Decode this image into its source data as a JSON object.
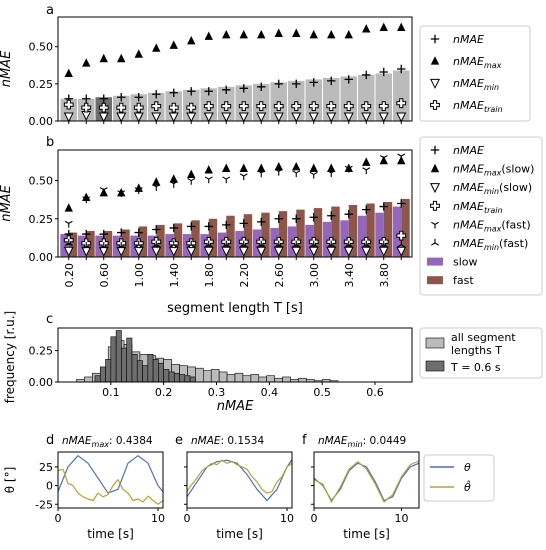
{
  "chart_data": [
    {
      "type": "bar",
      "panel_label": "a",
      "ylabel": "nMAE",
      "ylim": [
        0,
        0.7
      ],
      "yticks": [
        "0.00",
        "0.25",
        "0.50"
      ],
      "x_count": 20,
      "x_highlight_index": 2,
      "bar_values": [
        0.15,
        0.15,
        0.16,
        0.17,
        0.18,
        0.19,
        0.2,
        0.21,
        0.22,
        0.23,
        0.24,
        0.25,
        0.26,
        0.27,
        0.28,
        0.29,
        0.3,
        0.31,
        0.32,
        0.34
      ],
      "series": [
        {
          "name": "nMAE",
          "marker": "plus",
          "values": [
            0.15,
            0.15,
            0.15,
            0.16,
            0.16,
            0.18,
            0.19,
            0.2,
            0.2,
            0.21,
            0.22,
            0.23,
            0.25,
            0.25,
            0.26,
            0.27,
            0.28,
            0.31,
            0.33,
            0.35
          ]
        },
        {
          "name": "nMAE_max",
          "marker": "triangle-up",
          "values": [
            0.32,
            0.39,
            0.42,
            0.42,
            0.45,
            0.49,
            0.51,
            0.54,
            0.57,
            0.58,
            0.58,
            0.58,
            0.59,
            0.59,
            0.58,
            0.58,
            0.58,
            0.62,
            0.63,
            0.63
          ]
        },
        {
          "name": "nMAE_min",
          "marker": "triangle-down",
          "values": [
            0.03,
            0.04,
            0.03,
            0.03,
            0.03,
            0.03,
            0.03,
            0.03,
            0.03,
            0.03,
            0.03,
            0.03,
            0.03,
            0.03,
            0.03,
            0.03,
            0.03,
            0.03,
            0.03,
            0.03
          ]
        },
        {
          "name": "nMAE_train",
          "marker": "plus-outline",
          "values": [
            0.11,
            0.09,
            0.09,
            0.09,
            0.09,
            0.1,
            0.09,
            0.09,
            0.1,
            0.1,
            0.1,
            0.1,
            0.1,
            0.1,
            0.1,
            0.1,
            0.1,
            0.1,
            0.1,
            0.12
          ]
        }
      ],
      "legend": {
        "position": "right",
        "items": [
          {
            "base": "nMAE",
            "sub": "",
            "suffix": "",
            "marker": "plus"
          },
          {
            "base": "nMAE",
            "sub": "max",
            "suffix": "",
            "marker": "triangle-up"
          },
          {
            "base": "nMAE",
            "sub": "min",
            "suffix": "",
            "marker": "triangle-down"
          },
          {
            "base": "nMAE",
            "sub": "train",
            "suffix": "",
            "marker": "plus-outline"
          }
        ]
      }
    },
    {
      "type": "bar",
      "panel_label": "b",
      "ylabel": "nMAE",
      "xlabel": "segment length T [s]",
      "ylim": [
        0,
        0.7
      ],
      "yticks": [
        "0.00",
        "0.25",
        "0.50"
      ],
      "xtick_labels": [
        "0.20",
        "0.60",
        "1.00",
        "1.40",
        "1.80",
        "2.20",
        "2.60",
        "3.00",
        "3.40",
        "3.80"
      ],
      "x_count": 20,
      "series": [
        {
          "name": "slow",
          "kind": "bar",
          "color": "#9467bd",
          "values": [
            0.15,
            0.14,
            0.14,
            0.14,
            0.14,
            0.14,
            0.15,
            0.15,
            0.15,
            0.16,
            0.17,
            0.18,
            0.19,
            0.2,
            0.21,
            0.23,
            0.24,
            0.27,
            0.29,
            0.33
          ]
        },
        {
          "name": "fast",
          "kind": "bar",
          "color": "#8c564b",
          "values": [
            0.16,
            0.17,
            0.17,
            0.18,
            0.2,
            0.21,
            0.22,
            0.24,
            0.25,
            0.27,
            0.28,
            0.29,
            0.3,
            0.31,
            0.32,
            0.33,
            0.34,
            0.35,
            0.36,
            0.38
          ]
        },
        {
          "name": "nMAE",
          "marker": "plus",
          "values": [
            0.15,
            0.15,
            0.15,
            0.16,
            0.16,
            0.18,
            0.19,
            0.2,
            0.2,
            0.21,
            0.22,
            0.23,
            0.25,
            0.25,
            0.26,
            0.27,
            0.28,
            0.31,
            0.33,
            0.35
          ]
        },
        {
          "name": "nMAE_max(slow)",
          "marker": "triangle-up",
          "values": [
            0.32,
            0.39,
            0.42,
            0.42,
            0.45,
            0.49,
            0.51,
            0.54,
            0.57,
            0.58,
            0.58,
            0.58,
            0.59,
            0.59,
            0.58,
            0.58,
            0.58,
            0.62,
            0.63,
            0.63
          ]
        },
        {
          "name": "nMAE_min(slow)",
          "marker": "triangle-down",
          "values": [
            0.04,
            0.04,
            0.04,
            0.04,
            0.04,
            0.04,
            0.04,
            0.04,
            0.04,
            0.04,
            0.04,
            0.04,
            0.04,
            0.04,
            0.04,
            0.04,
            0.04,
            0.04,
            0.04,
            0.04
          ]
        },
        {
          "name": "nMAE_train",
          "marker": "plus-outline",
          "values": [
            0.11,
            0.09,
            0.09,
            0.09,
            0.09,
            0.1,
            0.09,
            0.09,
            0.1,
            0.1,
            0.1,
            0.1,
            0.1,
            0.1,
            0.1,
            0.1,
            0.1,
            0.1,
            0.1,
            0.14
          ]
        },
        {
          "name": "nMAE_max(fast)",
          "marker": "tri-down",
          "values": [
            0.22,
            0.38,
            0.44,
            0.42,
            0.44,
            0.46,
            0.48,
            0.5,
            0.51,
            0.51,
            0.53,
            0.55,
            0.56,
            0.55,
            0.54,
            0.55,
            0.58,
            0.57,
            0.65,
            0.66
          ]
        },
        {
          "name": "nMAE_min(fast)",
          "marker": "tri-up",
          "values": [
            0.09,
            0.07,
            0.07,
            0.07,
            0.08,
            0.08,
            0.08,
            0.08,
            0.08,
            0.08,
            0.08,
            0.08,
            0.08,
            0.08,
            0.08,
            0.08,
            0.08,
            0.08,
            0.08,
            0.08
          ]
        }
      ],
      "legend": {
        "position": "right",
        "items": [
          {
            "base": "nMAE",
            "sub": "",
            "suffix": "",
            "marker": "plus"
          },
          {
            "base": "nMAE",
            "sub": "max",
            "suffix": "(slow)",
            "marker": "triangle-up"
          },
          {
            "base": "nMAE",
            "sub": "min",
            "suffix": "(slow)",
            "marker": "triangle-down"
          },
          {
            "base": "nMAE",
            "sub": "train",
            "suffix": "",
            "marker": "plus-outline"
          },
          {
            "base": "nMAE",
            "sub": "max",
            "suffix": "(fast)",
            "marker": "tri-down"
          },
          {
            "base": "nMAE",
            "sub": "min",
            "suffix": "(fast)",
            "marker": "tri-up"
          },
          {
            "base": "slow",
            "sub": "",
            "suffix": "",
            "marker": "patch",
            "color": "#9467bd"
          },
          {
            "base": "fast",
            "sub": "",
            "suffix": "",
            "marker": "patch",
            "color": "#8c564b"
          }
        ]
      }
    },
    {
      "type": "bar",
      "panel_label": "c",
      "ylabel": "frequency [r.u.]",
      "xlabel": "nMAE",
      "xlim": [
        0,
        0.67
      ],
      "ylim": [
        0,
        0.43
      ],
      "xticks": [
        "0.1",
        "0.2",
        "0.3",
        "0.4",
        "0.5",
        "0.6"
      ],
      "yticks": [
        "0.00",
        "0.25"
      ],
      "series": [
        {
          "name": "all segment lengths T",
          "color": "#bbbbbb",
          "bins": [
            [
              0.035,
              0.05,
              0.02
            ],
            [
              0.05,
              0.065,
              0.04
            ],
            [
              0.065,
              0.08,
              0.07
            ],
            [
              0.08,
              0.095,
              0.1
            ],
            [
              0.095,
              0.11,
              0.28
            ],
            [
              0.11,
              0.125,
              0.33
            ],
            [
              0.125,
              0.14,
              0.3
            ],
            [
              0.14,
              0.155,
              0.24
            ],
            [
              0.155,
              0.17,
              0.22
            ],
            [
              0.17,
              0.185,
              0.21
            ],
            [
              0.185,
              0.2,
              0.19
            ],
            [
              0.2,
              0.215,
              0.18
            ],
            [
              0.215,
              0.23,
              0.14
            ],
            [
              0.23,
              0.245,
              0.13
            ],
            [
              0.245,
              0.26,
              0.12
            ],
            [
              0.26,
              0.275,
              0.11
            ],
            [
              0.275,
              0.29,
              0.09
            ],
            [
              0.29,
              0.305,
              0.1
            ],
            [
              0.305,
              0.32,
              0.08
            ],
            [
              0.32,
              0.335,
              0.06
            ],
            [
              0.335,
              0.35,
              0.07
            ],
            [
              0.35,
              0.365,
              0.05
            ],
            [
              0.365,
              0.38,
              0.06
            ],
            [
              0.38,
              0.395,
              0.04
            ],
            [
              0.395,
              0.41,
              0.05
            ],
            [
              0.41,
              0.425,
              0.03
            ],
            [
              0.425,
              0.44,
              0.04
            ],
            [
              0.44,
              0.455,
              0.02
            ],
            [
              0.455,
              0.47,
              0.03
            ],
            [
              0.47,
              0.485,
              0.02
            ],
            [
              0.485,
              0.5,
              0.01
            ],
            [
              0.5,
              0.515,
              0.02
            ],
            [
              0.515,
              0.53,
              0.01
            ]
          ]
        },
        {
          "name": "T = 0.6 s",
          "color": "#6e6e6e",
          "bins": [
            [
              0.07,
              0.08,
              0.05
            ],
            [
              0.08,
              0.09,
              0.12
            ],
            [
              0.09,
              0.1,
              0.18
            ],
            [
              0.1,
              0.11,
              0.36
            ],
            [
              0.11,
              0.12,
              0.41
            ],
            [
              0.12,
              0.13,
              0.27
            ],
            [
              0.13,
              0.14,
              0.35
            ],
            [
              0.14,
              0.15,
              0.22
            ],
            [
              0.15,
              0.16,
              0.17
            ],
            [
              0.16,
              0.17,
              0.13
            ],
            [
              0.17,
              0.18,
              0.22
            ],
            [
              0.18,
              0.19,
              0.18
            ],
            [
              0.19,
              0.2,
              0.15
            ],
            [
              0.2,
              0.21,
              0.1
            ],
            [
              0.21,
              0.22,
              0.08
            ],
            [
              0.22,
              0.23,
              0.07
            ],
            [
              0.23,
              0.24,
              0.06
            ],
            [
              0.24,
              0.25,
              0.05
            ],
            [
              0.25,
              0.26,
              0.04
            ]
          ]
        }
      ],
      "legend": {
        "position": "right",
        "items": [
          {
            "lines": [
              "all segment",
              "lengths T"
            ],
            "color": "#bbbbbb"
          },
          {
            "lines": [
              "T = 0.6 s"
            ],
            "color": "#6e6e6e"
          }
        ]
      }
    },
    {
      "type": "line",
      "panel_label": "d",
      "title_name": "nMAE_max",
      "title_value": "0.4384",
      "ylabel": "θ [°]",
      "xlabel": "time [s]",
      "xlim": [
        0,
        10.5
      ],
      "ylim": [
        -30,
        45
      ],
      "xticks": [
        "0",
        "10"
      ],
      "yticks": [
        "-25",
        "0",
        "25"
      ],
      "series": [
        {
          "name": "θ",
          "color": "#4c6fbf",
          "x": [
            0,
            1,
            2,
            3,
            4,
            5,
            6,
            7,
            8,
            9,
            10,
            10.5
          ],
          "y": [
            -8,
            25,
            40,
            30,
            10,
            -10,
            -5,
            30,
            40,
            30,
            0,
            -8
          ]
        },
        {
          "name": "θ̂",
          "color": "#b5a42e",
          "x": [
            0,
            0.5,
            1,
            1.5,
            2,
            2.5,
            3,
            3.5,
            4,
            4.5,
            5,
            5.5,
            6,
            6.5,
            7,
            7.5,
            8,
            8.5,
            9,
            9.5,
            10,
            10.5
          ],
          "y": [
            20,
            22,
            3,
            0,
            -10,
            -15,
            -18,
            -20,
            -10,
            -15,
            -12,
            0,
            8,
            -5,
            -10,
            -20,
            -18,
            -22,
            -14,
            -20,
            -25,
            -20
          ]
        }
      ]
    },
    {
      "type": "line",
      "panel_label": "e",
      "title_name": "nMAE",
      "title_value": "0.1534",
      "xlabel": "time [s]",
      "xlim": [
        0,
        10.5
      ],
      "ylim": [
        -30,
        45
      ],
      "xticks": [
        "0",
        "10"
      ],
      "series": [
        {
          "name": "θ",
          "color": "#4c6fbf",
          "x": [
            0,
            1,
            2,
            3,
            4,
            5,
            6,
            7,
            8,
            9,
            10,
            10.5
          ],
          "y": [
            -15,
            5,
            25,
            32,
            34,
            30,
            15,
            -5,
            -20,
            -5,
            25,
            35
          ]
        },
        {
          "name": "θ̂",
          "color": "#b5a42e",
          "x": [
            0,
            0.5,
            1,
            1.5,
            2,
            2.5,
            3,
            3.5,
            4,
            4.5,
            5,
            5.5,
            6,
            6.5,
            7,
            7.5,
            8,
            8.5,
            9,
            9.5,
            10,
            10.5
          ],
          "y": [
            -8,
            2,
            10,
            20,
            25,
            30,
            28,
            34,
            30,
            32,
            28,
            25,
            22,
            12,
            5,
            -5,
            -10,
            -8,
            5,
            12,
            25,
            30
          ]
        }
      ]
    },
    {
      "type": "line",
      "panel_label": "f",
      "title_name": "nMAE_min",
      "title_value": "0.0449",
      "xlabel": "time [s]",
      "xlim": [
        0,
        12
      ],
      "ylim": [
        -30,
        45
      ],
      "xticks": [
        "0",
        "10"
      ],
      "series": [
        {
          "name": "θ",
          "color": "#4c6fbf",
          "x": [
            0,
            1,
            2,
            3,
            4,
            5,
            6,
            7,
            8,
            9,
            10,
            11,
            12
          ],
          "y": [
            10,
            0,
            -20,
            -5,
            20,
            30,
            25,
            5,
            -20,
            -15,
            10,
            25,
            30
          ]
        },
        {
          "name": "θ̂",
          "color": "#b5a42e",
          "x": [
            0,
            1,
            2,
            3,
            4,
            5,
            6,
            7,
            8,
            9,
            10,
            11,
            12
          ],
          "y": [
            8,
            2,
            -22,
            -2,
            22,
            32,
            22,
            2,
            -22,
            -12,
            12,
            28,
            33
          ]
        }
      ],
      "legend": {
        "position": "right",
        "items": [
          "θ",
          "θ̂"
        ]
      }
    }
  ]
}
